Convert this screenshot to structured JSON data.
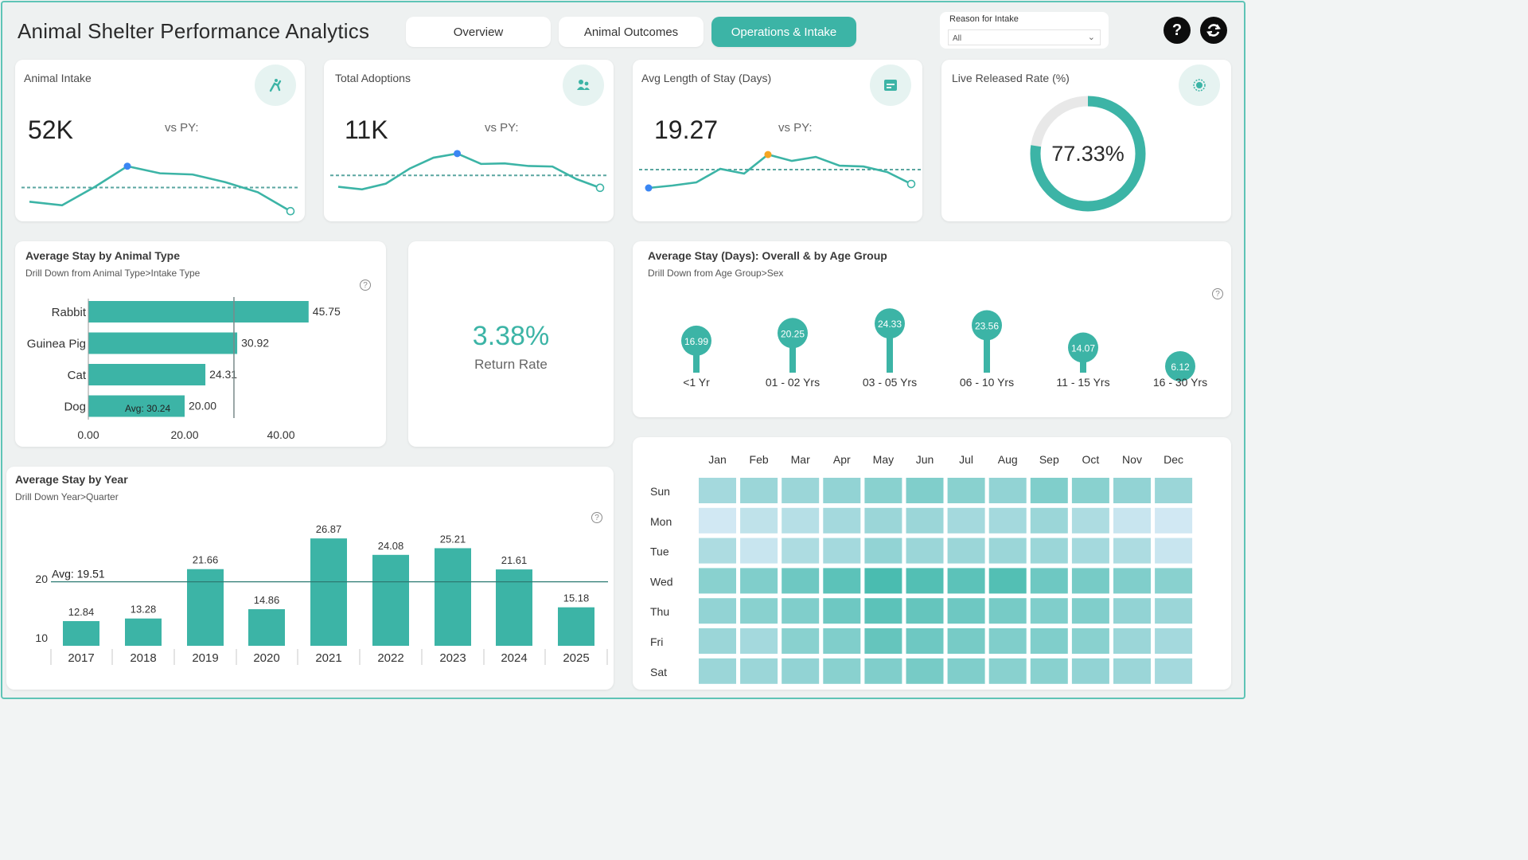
{
  "header": {
    "title": "Animal Shelter Performance Analytics",
    "nav": [
      "Overview",
      "Animal Outcomes",
      "Operations & Intake"
    ],
    "active_nav": 2,
    "slicer_label": "Reason for Intake",
    "slicer_value": "All",
    "help_icon": "question-icon",
    "refresh_icon": "refresh-icon"
  },
  "kpis": [
    {
      "label": "Animal Intake",
      "value": "52K",
      "vs": "vs PY:",
      "icon": "animal-icon"
    },
    {
      "label": "Total Adoptions",
      "value": "11K",
      "vs": "vs PY:",
      "icon": "people-icon"
    },
    {
      "label": "Avg Length of Stay (Days)",
      "value": "19.27",
      "vs": "vs PY:",
      "icon": "calendar-icon"
    },
    {
      "label": "Live Released Rate (%)",
      "value": "77.33%",
      "vs": "",
      "icon": "target-icon"
    }
  ],
  "live_released_rate": 77.33,
  "colors": {
    "accent": "#3cb4a6",
    "blue": "#3a86f3",
    "orange": "#f5a623",
    "heat_low": "#e3eefc",
    "heat_high": "#2fb3a2"
  },
  "return_rate": {
    "value": "3.38%",
    "label": "Return Rate"
  },
  "stay_by_type": {
    "title": "Average Stay by Animal Type",
    "caption": "Drill Down from Animal Type>Intake Type",
    "avg_label": "Avg: 30.24"
  },
  "age_group": {
    "title": "Average Stay (Days): Overall & by Age Group",
    "caption": "Drill Down from Age Group>Sex"
  },
  "by_year": {
    "title": "Average Stay by Year",
    "caption": "Drill Down Year>Quarter",
    "avg_label": "Avg: 19.51"
  },
  "heatmap": {
    "months": [
      "Jan",
      "Feb",
      "Mar",
      "Apr",
      "May",
      "Jun",
      "Jul",
      "Aug",
      "Sep",
      "Oct",
      "Nov",
      "Dec"
    ],
    "days": [
      "Sun",
      "Mon",
      "Tue",
      "Wed",
      "Thu",
      "Fri",
      "Sat"
    ],
    "intensity": [
      [
        0.35,
        0.4,
        0.4,
        0.45,
        0.5,
        0.55,
        0.5,
        0.45,
        0.55,
        0.5,
        0.45,
        0.4
      ],
      [
        0.1,
        0.2,
        0.25,
        0.35,
        0.4,
        0.4,
        0.35,
        0.35,
        0.4,
        0.3,
        0.15,
        0.1
      ],
      [
        0.3,
        0.15,
        0.3,
        0.35,
        0.45,
        0.4,
        0.4,
        0.4,
        0.4,
        0.35,
        0.3,
        0.15
      ],
      [
        0.5,
        0.55,
        0.65,
        0.75,
        0.85,
        0.8,
        0.75,
        0.8,
        0.65,
        0.6,
        0.55,
        0.5
      ],
      [
        0.45,
        0.5,
        0.55,
        0.65,
        0.75,
        0.7,
        0.65,
        0.6,
        0.55,
        0.55,
        0.45,
        0.4
      ],
      [
        0.4,
        0.35,
        0.5,
        0.55,
        0.7,
        0.65,
        0.6,
        0.55,
        0.55,
        0.5,
        0.4,
        0.35
      ],
      [
        0.4,
        0.4,
        0.45,
        0.5,
        0.55,
        0.6,
        0.55,
        0.5,
        0.5,
        0.45,
        0.4,
        0.35
      ]
    ]
  },
  "chart_data": [
    {
      "type": "line",
      "name": "intake-sparkline",
      "values": [
        4,
        3.4,
        6.5,
        10,
        8.8,
        8.6,
        7.3,
        5.6,
        2.4
      ],
      "highlight_index": 3,
      "reference": 6.4
    },
    {
      "type": "line",
      "name": "adoptions-sparkline",
      "values": [
        5.4,
        4.9,
        6.0,
        8.9,
        11.0,
        11.8,
        9.8,
        9.9,
        9.4,
        9.3,
        6.9,
        5.2
      ],
      "highlight_index": 5,
      "reference": 7.6
    },
    {
      "type": "line",
      "name": "stay-sparkline",
      "values": [
        4.0,
        4.3,
        4.7,
        6.4,
        5.8,
        8.2,
        7.4,
        7.9,
        6.8,
        6.7,
        6.0,
        4.5
      ],
      "highlight_index": 5,
      "start_highlight": 0,
      "reference": 6.3
    },
    {
      "type": "bar",
      "orientation": "horizontal",
      "title": "Average Stay by Animal Type",
      "categories": [
        "Rabbit",
        "Guinea Pig",
        "Cat",
        "Dog"
      ],
      "values": [
        45.75,
        30.92,
        24.31,
        20.0
      ],
      "labels": [
        "45.75",
        "30.92",
        "24.31",
        "20.00"
      ],
      "avg": 30.24,
      "xlim": [
        0,
        50
      ],
      "xticks": [
        "0.00",
        "20.00",
        "40.00"
      ]
    },
    {
      "type": "scatter",
      "title": "Average Stay (Days): Overall & by Age Group",
      "categories": [
        "<1 Yr",
        "01 - 02 Yrs",
        "03 - 05 Yrs",
        "06 - 10 Yrs",
        "11 - 15 Yrs",
        "16 - 30 Yrs"
      ],
      "values": [
        16.99,
        20.25,
        24.33,
        23.56,
        14.07,
        6.12
      ]
    },
    {
      "type": "bar",
      "title": "Average Stay by Year",
      "categories": [
        "2017",
        "2018",
        "2019",
        "2020",
        "2021",
        "2022",
        "2023",
        "2024",
        "2025"
      ],
      "values": [
        12.84,
        13.28,
        21.66,
        14.86,
        26.87,
        24.08,
        25.21,
        21.61,
        15.18
      ],
      "avg": 19.51,
      "yticks": [
        "10",
        "20"
      ]
    },
    {
      "type": "heatmap",
      "x": [
        "Jan",
        "Feb",
        "Mar",
        "Apr",
        "May",
        "Jun",
        "Jul",
        "Aug",
        "Sep",
        "Oct",
        "Nov",
        "Dec"
      ],
      "y": [
        "Sun",
        "Mon",
        "Tue",
        "Wed",
        "Thu",
        "Fri",
        "Sat"
      ]
    }
  ]
}
